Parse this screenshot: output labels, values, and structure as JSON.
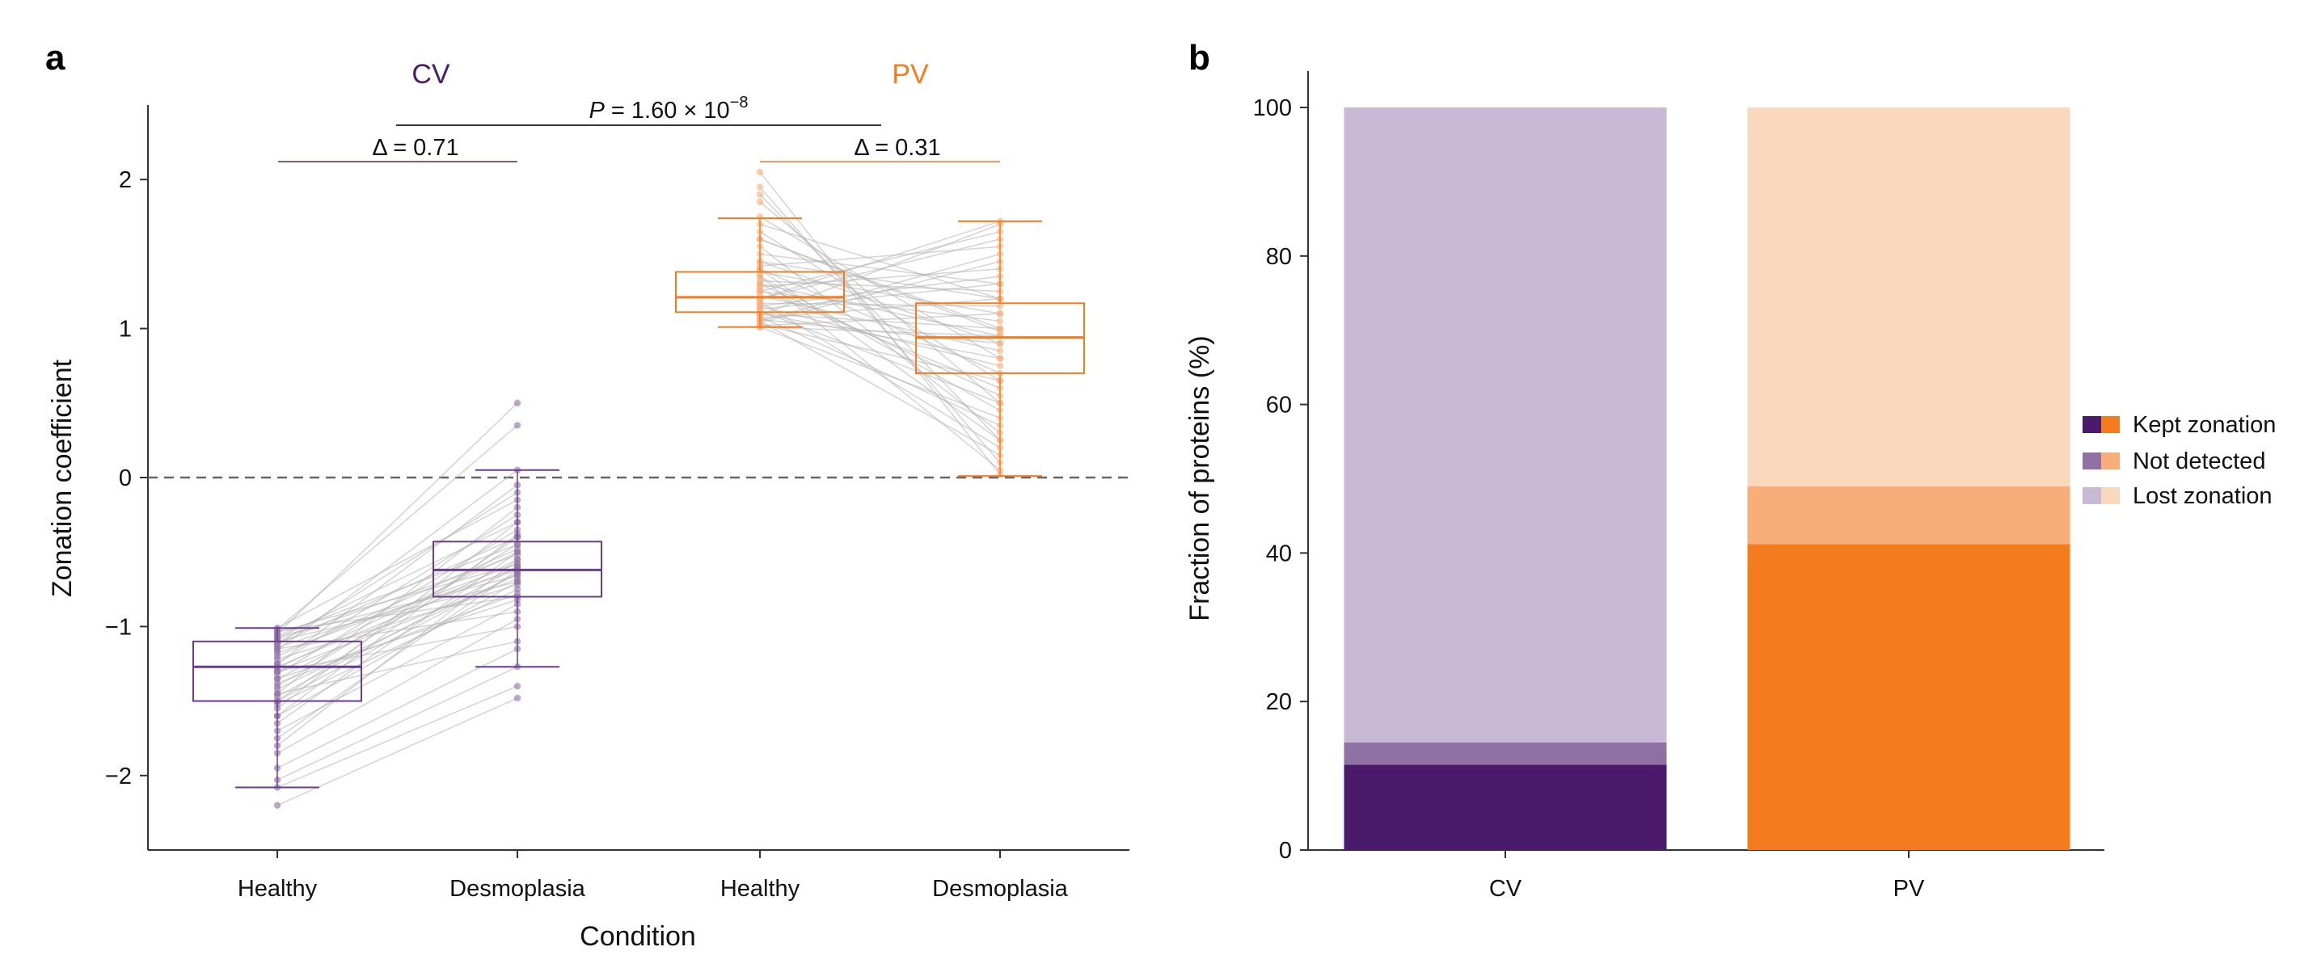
{
  "panel_a": {
    "letter": "a",
    "group_labels": [
      "CV",
      "PV"
    ],
    "p_value": {
      "prefix": "P",
      "mid": " = 1.60 × 10",
      "exp": "−8"
    },
    "deltas": [
      "Δ = 0.71",
      "Δ = 0.31"
    ]
  },
  "panel_b": {
    "letter": "b",
    "legend": [
      "Kept zonation",
      "Not detected",
      "Lost zonation"
    ]
  },
  "colors": {
    "cv_dark": "#4a1a6b",
    "cv_mid": "#8f71a3",
    "cv_light": "#c8bad6",
    "pv_dark": "#f57b1f",
    "pv_mid": "#f8ae78",
    "pv_light": "#f9d8bd",
    "pair_line": "#b4b4b4",
    "axis": "#333333"
  },
  "chart_data": [
    {
      "type": "box",
      "title": "",
      "xlabel": "Condition",
      "ylabel": "Zonation coefficient",
      "ylim": [
        -2.5,
        2.5
      ],
      "yticks": [
        2,
        1,
        0,
        -1,
        -2
      ],
      "ytick_labels": [
        "2",
        "1",
        "0",
        "−1",
        "−2"
      ],
      "reference_line": 0,
      "categories": [
        "Healthy",
        "Desmoplasia",
        "Healthy",
        "Desmoplasia"
      ],
      "groups": [
        "CV",
        "CV",
        "PV",
        "PV"
      ],
      "boxes": [
        {
          "group": "CV",
          "condition": "Healthy",
          "whisker_low": -2.08,
          "q1": -1.5,
          "median": -1.27,
          "q3": -1.1,
          "whisker_high": -1.01
        },
        {
          "group": "CV",
          "condition": "Desmoplasia",
          "whisker_low": -1.27,
          "q1": -0.8,
          "median": -0.62,
          "q3": -0.43,
          "whisker_high": 0.05
        },
        {
          "group": "PV",
          "condition": "Healthy",
          "whisker_low": 1.01,
          "q1": 1.11,
          "median": 1.21,
          "q3": 1.38,
          "whisker_high": 1.74
        },
        {
          "group": "PV",
          "condition": "Desmoplasia",
          "whisker_low": 0.01,
          "q1": 0.7,
          "median": 0.94,
          "q3": 1.17,
          "whisker_high": 1.72
        }
      ],
      "paired_points_cv": [
        [
          -2.2,
          -1.48
        ],
        [
          -2.08,
          -1.4
        ],
        [
          -2.03,
          -1.27
        ],
        [
          -1.95,
          -1.15
        ],
        [
          -1.85,
          -0.95
        ],
        [
          -1.8,
          -0.55
        ],
        [
          -1.75,
          -0.62
        ],
        [
          -1.7,
          -0.85
        ],
        [
          -1.65,
          -0.5
        ],
        [
          -1.6,
          -0.7
        ],
        [
          -1.55,
          -0.3
        ],
        [
          -1.52,
          -0.75
        ],
        [
          -1.5,
          -0.4
        ],
        [
          -1.47,
          -0.6
        ],
        [
          -1.45,
          -0.2
        ],
        [
          -1.42,
          -0.65
        ],
        [
          -1.4,
          -0.45
        ],
        [
          -1.38,
          -0.78
        ],
        [
          -1.35,
          -0.55
        ],
        [
          -1.32,
          -0.35
        ],
        [
          -1.3,
          -0.68
        ],
        [
          -1.28,
          -0.5
        ],
        [
          -1.27,
          -0.6
        ],
        [
          -1.25,
          -0.25
        ],
        [
          -1.22,
          -0.72
        ],
        [
          -1.2,
          -0.48
        ],
        [
          -1.18,
          -0.58
        ],
        [
          -1.16,
          0.05
        ],
        [
          -1.14,
          -0.62
        ],
        [
          -1.12,
          -0.4
        ],
        [
          -1.1,
          -0.7
        ],
        [
          -1.09,
          -0.52
        ],
        [
          -1.08,
          -0.3
        ],
        [
          -1.07,
          -0.66
        ],
        [
          -1.06,
          -0.45
        ],
        [
          -1.05,
          0.5
        ],
        [
          -1.04,
          -0.58
        ],
        [
          -1.03,
          -0.8
        ],
        [
          -1.02,
          0.35
        ],
        [
          -1.01,
          -0.15
        ],
        [
          -1.3,
          -1.0
        ],
        [
          -1.15,
          -0.9
        ],
        [
          -1.45,
          -1.1
        ],
        [
          -1.25,
          -0.05
        ],
        [
          -1.6,
          -0.38
        ],
        [
          -1.35,
          -0.82
        ],
        [
          -1.12,
          -0.1
        ],
        [
          -1.5,
          -0.64
        ]
      ],
      "paired_points_pv": [
        [
          2.05,
          0.02
        ],
        [
          1.95,
          0.1
        ],
        [
          1.9,
          0.25
        ],
        [
          1.85,
          0.5
        ],
        [
          1.75,
          0.8
        ],
        [
          1.7,
          1.2
        ],
        [
          1.65,
          0.65
        ],
        [
          1.6,
          1.0
        ],
        [
          1.55,
          0.3
        ],
        [
          1.5,
          1.3
        ],
        [
          1.45,
          0.9
        ],
        [
          1.42,
          1.55
        ],
        [
          1.4,
          0.7
        ],
        [
          1.38,
          1.1
        ],
        [
          1.35,
          0.45
        ],
        [
          1.32,
          1.25
        ],
        [
          1.3,
          0.95
        ],
        [
          1.28,
          1.4
        ],
        [
          1.26,
          0.6
        ],
        [
          1.25,
          1.05
        ],
        [
          1.22,
          0.85
        ],
        [
          1.2,
          1.6
        ],
        [
          1.18,
          0.2
        ],
        [
          1.17,
          1.15
        ],
        [
          1.15,
          0.75
        ],
        [
          1.13,
          1.3
        ],
        [
          1.12,
          0.5
        ],
        [
          1.1,
          1.0
        ],
        [
          1.09,
          1.7
        ],
        [
          1.08,
          0.35
        ],
        [
          1.07,
          1.2
        ],
        [
          1.06,
          0.9
        ],
        [
          1.05,
          0.15
        ],
        [
          1.04,
          1.45
        ],
        [
          1.03,
          0.65
        ],
        [
          1.02,
          1.1
        ],
        [
          1.01,
          0.4
        ],
        [
          1.01,
          0.95
        ],
        [
          1.25,
          1.65
        ],
        [
          1.35,
          0.05
        ],
        [
          1.15,
          1.35
        ],
        [
          1.3,
          0.55
        ],
        [
          1.2,
          1.72
        ],
        [
          1.45,
          1.2
        ],
        [
          1.1,
          0.8
        ],
        [
          1.6,
          0.98
        ],
        [
          1.05,
          1.5
        ],
        [
          1.4,
          0.25
        ]
      ]
    },
    {
      "type": "stacked_bar",
      "title": "",
      "xlabel": "",
      "ylabel": "Fraction of proteins (%)",
      "ylim": [
        0,
        100
      ],
      "yticks": [
        0,
        20,
        40,
        60,
        80,
        100
      ],
      "categories": [
        "CV",
        "PV"
      ],
      "series": [
        {
          "name": "Kept zonation",
          "values": [
            11.5,
            41.2
          ]
        },
        {
          "name": "Not detected",
          "values": [
            3.0,
            7.8
          ]
        },
        {
          "name": "Lost zonation",
          "values": [
            85.5,
            51.0
          ]
        }
      ]
    }
  ]
}
